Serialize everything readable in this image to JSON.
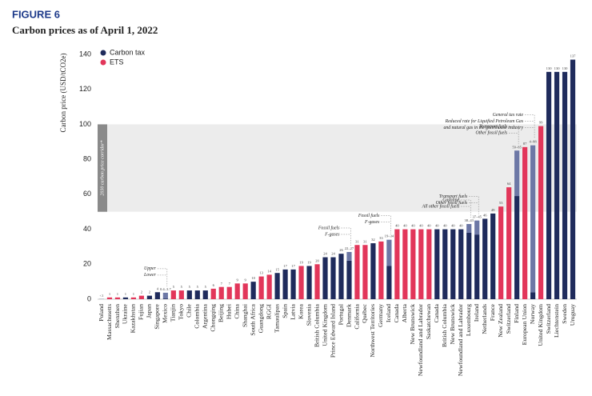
{
  "figure_label": "FIGURE 6",
  "chart_data": {
    "type": "bar",
    "title": "Carbon prices as of April 1, 2022",
    "y_label": "Carbon price (USD/tCO2e)",
    "ylim": [
      0,
      140
    ],
    "yticks": [
      0,
      20,
      40,
      60,
      80,
      100,
      120,
      140
    ],
    "corridor": {
      "label": "2030 carbon price corridor*",
      "range": [
        50,
        100
      ],
      "color": "#ececec",
      "label_color": "#8a8a8a"
    },
    "legend": "top-left",
    "categories": [
      "Poland",
      "Massachusetts",
      "Shenzhen",
      "Ukraine",
      "Kazakhstan",
      "Fujian",
      "Japan",
      "Singapore",
      "Mexico",
      "Tianjin",
      "Tokyo",
      "Chile",
      "Colombia",
      "Argentina",
      "Chongqing",
      "Beijing",
      "Hubei",
      "China",
      "Shanghai",
      "South Africa",
      "Guangdong",
      "RGGI",
      "Tamaulipas",
      "Spain",
      "Latvia",
      "Korea",
      "Slovenia",
      "British Columbia",
      "United Kingdom",
      "Prince Edward Island",
      "Portugal",
      "Denmark",
      "California",
      "Québec",
      "Northwest Territories",
      "Germany",
      "Iceland",
      "Canada",
      "Alberta",
      "New Brunswick",
      "Newfoundland and Labrador",
      "Saskatchewan",
      "Canada",
      "British Columbia",
      "New Brunswick",
      "Newfoundland and Labrador",
      "Luxembourg",
      "Ireland",
      "Netherlands",
      "France",
      "New Zealand",
      "Switzerland",
      "Finland",
      "European Union",
      "Norway",
      "United Kingdom",
      "Switzerland",
      "Liechtenstein",
      "Sweden",
      "Uruguay"
    ],
    "series": [
      {
        "name": "Carbon tax",
        "color": "#1f2b5c",
        "range_color": "#6d78a6",
        "values": [
          0.08,
          null,
          null,
          1,
          null,
          null,
          2,
          4,
          3.7,
          null,
          null,
          5,
          5,
          5,
          null,
          null,
          null,
          null,
          null,
          10,
          null,
          null,
          15,
          17,
          17,
          null,
          19,
          null,
          24,
          24,
          26,
          27,
          null,
          null,
          32,
          null,
          34,
          null,
          null,
          null,
          null,
          null,
          40,
          40,
          40,
          40,
          43,
          45,
          46,
          49,
          null,
          null,
          85,
          null,
          88,
          null,
          130,
          130,
          130,
          137
        ],
        "low_values": [
          null,
          null,
          null,
          null,
          null,
          null,
          null,
          null,
          0.4,
          null,
          null,
          null,
          null,
          null,
          null,
          null,
          null,
          null,
          null,
          null,
          null,
          null,
          null,
          null,
          null,
          null,
          null,
          null,
          null,
          null,
          null,
          22,
          null,
          null,
          null,
          null,
          19,
          null,
          null,
          null,
          null,
          null,
          null,
          null,
          null,
          null,
          38,
          37,
          null,
          null,
          null,
          null,
          59,
          null,
          4,
          null,
          null,
          null,
          null,
          null
        ],
        "value_labels": [
          "<1",
          null,
          null,
          null,
          null,
          null,
          null,
          null,
          "0.4–3.7",
          null,
          null,
          null,
          null,
          null,
          null,
          null,
          null,
          null,
          null,
          null,
          null,
          null,
          null,
          null,
          null,
          null,
          null,
          null,
          null,
          null,
          null,
          "22–27",
          null,
          null,
          null,
          null,
          "19–34",
          null,
          null,
          null,
          null,
          null,
          null,
          null,
          null,
          null,
          "38–43",
          "37–45",
          null,
          null,
          null,
          null,
          "59–85",
          null,
          "4–88",
          null,
          null,
          null,
          null,
          null
        ],
        "range_notes": [
          null,
          null,
          null,
          null,
          null,
          null,
          null,
          null,
          {
            "upper": [
              "Upper"
            ],
            "lower": [
              "Lower"
            ]
          },
          null,
          null,
          null,
          null,
          null,
          null,
          null,
          null,
          null,
          null,
          null,
          null,
          null,
          null,
          null,
          null,
          null,
          null,
          null,
          null,
          null,
          null,
          {
            "upper": [
              "Fossil fuels"
            ],
            "lower": [
              "F-gases"
            ]
          },
          null,
          null,
          null,
          null,
          {
            "upper": [
              "Fossil fuels"
            ],
            "lower": [
              "F-gases"
            ]
          },
          null,
          null,
          null,
          null,
          null,
          null,
          null,
          null,
          null,
          {
            "upper": [
              "Gasoline"
            ],
            "lower": [
              "All other fossil fuels"
            ]
          },
          {
            "upper": [
              "Transport fuels"
            ],
            "lower": [
              "Other fossil fuels"
            ]
          },
          null,
          null,
          null,
          null,
          {
            "upper": [
              "Transport fuels"
            ],
            "lower": [
              "Other fossil fuels"
            ]
          },
          null,
          {
            "upper": [
              "General tax rate"
            ],
            "lower": [
              "Reduced rate for Liquified Petroleum Gas",
              "and natural gas in the greenhouse industry"
            ]
          },
          null,
          null,
          null,
          null,
          null
        ]
      },
      {
        "name": "ETS",
        "color": "#e2365a",
        "values": [
          null,
          1,
          1,
          null,
          1,
          2,
          null,
          null,
          null,
          5,
          5,
          null,
          null,
          null,
          6,
          7,
          7,
          9,
          9,
          null,
          13,
          14,
          null,
          null,
          null,
          19,
          null,
          20,
          null,
          null,
          null,
          null,
          31,
          31,
          null,
          33,
          null,
          40,
          40,
          40,
          40,
          40,
          null,
          null,
          null,
          null,
          null,
          null,
          null,
          null,
          53,
          64,
          null,
          87,
          null,
          99,
          null,
          null,
          null,
          null
        ]
      }
    ]
  }
}
